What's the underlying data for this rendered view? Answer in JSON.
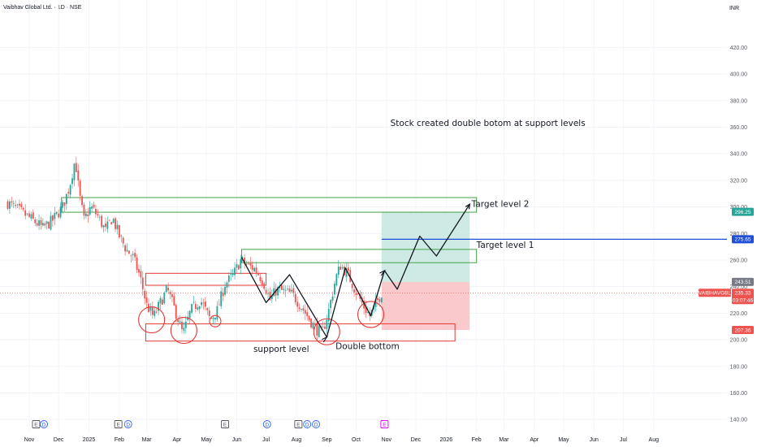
{
  "header": {
    "title": "Vaibhav Global Ltd. · 1D · NSE",
    "currency": "INR"
  },
  "colors": {
    "up": "#26a69a",
    "down": "#ef5350",
    "support_box": "#e53935",
    "resistance_box": "#43a047",
    "target_line": "#1e4fd6",
    "profit_zone": "#cdebe4",
    "loss_zone": "#f9c9cc"
  },
  "chart_data": {
    "type": "candlestick",
    "ylim": [
      130,
      430
    ],
    "y_ticks": [
      140,
      160,
      180,
      200,
      220,
      240,
      260,
      280,
      300,
      320,
      340,
      360,
      380,
      400,
      420
    ],
    "y_tick_labels": [
      "140.00",
      "160.00",
      "180.00",
      "200.00",
      "220.00",
      "240.00",
      "260.00",
      "280.00",
      "300.00",
      "320.00",
      "340.00",
      "360.00",
      "380.00",
      "400.00",
      "420.00"
    ],
    "x_labels": [
      "Nov",
      "Dec",
      "2025",
      "Feb",
      "Mar",
      "Apr",
      "May",
      "Jun",
      "Jul",
      "Aug",
      "Sep",
      "Oct",
      "Nov",
      "Dec",
      "2026",
      "Feb",
      "Mar",
      "Apr",
      "May",
      "Jun",
      "Jul",
      "Aug"
    ],
    "x_dates": [
      "2024-11-01",
      "2024-12-01",
      "2025-01-01",
      "2025-02-01",
      "2025-03-01",
      "2025-04-01",
      "2025-05-01",
      "2025-06-01",
      "2025-07-01",
      "2025-08-01",
      "2025-09-01",
      "2025-10-01",
      "2025-11-01",
      "2025-12-01",
      "2026-01-01",
      "2026-02-01",
      "2026-03-01",
      "2026-04-01",
      "2026-05-01",
      "2026-06-01",
      "2026-07-01",
      "2026-08-01"
    ],
    "price_series": [
      [
        "2024-10-10",
        303
      ],
      [
        "2024-10-20",
        298
      ],
      [
        "2024-11-01",
        292
      ],
      [
        "2024-11-15",
        284
      ],
      [
        "2024-11-25",
        290
      ],
      [
        "2024-12-05",
        300
      ],
      [
        "2024-12-12",
        315
      ],
      [
        "2024-12-18",
        336
      ],
      [
        "2024-12-22",
        310
      ],
      [
        "2024-12-27",
        290
      ],
      [
        "2025-01-03",
        300
      ],
      [
        "2025-01-10",
        293
      ],
      [
        "2025-01-18",
        282
      ],
      [
        "2025-01-25",
        292
      ],
      [
        "2025-02-01",
        278
      ],
      [
        "2025-02-08",
        268
      ],
      [
        "2025-02-15",
        262
      ],
      [
        "2025-02-22",
        248
      ],
      [
        "2025-03-01",
        226
      ],
      [
        "2025-03-08",
        217
      ],
      [
        "2025-03-15",
        228
      ],
      [
        "2025-03-22",
        238
      ],
      [
        "2025-04-01",
        218
      ],
      [
        "2025-04-07",
        204
      ],
      [
        "2025-04-15",
        222
      ],
      [
        "2025-04-25",
        230
      ],
      [
        "2025-05-05",
        215
      ],
      [
        "2025-05-12",
        222
      ],
      [
        "2025-05-20",
        242
      ],
      [
        "2025-05-28",
        248
      ],
      [
        "2025-06-05",
        260
      ],
      [
        "2025-06-12",
        256
      ],
      [
        "2025-06-20",
        253
      ],
      [
        "2025-06-28",
        244
      ],
      [
        "2025-07-05",
        230
      ],
      [
        "2025-07-12",
        238
      ],
      [
        "2025-07-20",
        236
      ],
      [
        "2025-07-28",
        234
      ],
      [
        "2025-08-05",
        226
      ],
      [
        "2025-08-12",
        218
      ],
      [
        "2025-08-20",
        209
      ],
      [
        "2025-08-27",
        204
      ],
      [
        "2025-09-03",
        222
      ],
      [
        "2025-09-10",
        246
      ],
      [
        "2025-09-15",
        256
      ],
      [
        "2025-09-22",
        250
      ],
      [
        "2025-10-01",
        236
      ],
      [
        "2025-10-08",
        226
      ],
      [
        "2025-10-15",
        218
      ],
      [
        "2025-10-22",
        228
      ],
      [
        "2025-10-27",
        235.33
      ]
    ],
    "ohlc_last": {
      "close": 235.33
    },
    "price_labels": [
      {
        "value": 296.25,
        "text": "296.25",
        "color": "#26a69a"
      },
      {
        "value": 275.65,
        "text": "275.65",
        "color": "#1e4fd6"
      },
      {
        "value": 243.51,
        "text": "243.51",
        "color": "#787b86"
      },
      {
        "value": 235.33,
        "text": "235.33",
        "color": "#ef5350",
        "symbol": "VAIBHAVGBL",
        "countdown": "03:07:46"
      },
      {
        "value": 207.36,
        "text": "207.36",
        "color": "#ef5350"
      }
    ],
    "horizontal_lines": [
      {
        "name": "target-level-1-line",
        "value": 275.65
      }
    ],
    "position": {
      "entry": 243.51,
      "target": 296.25,
      "stop": 207.36,
      "start": "2025-10-27",
      "end": "2026-01-25"
    },
    "zones": [
      {
        "name": "resistance-zone-top",
        "kind": "resistance",
        "start": "2024-12-04",
        "end": "2026-02-01",
        "top": 307,
        "bottom": 296
      },
      {
        "name": "resistance-zone-mid",
        "kind": "resistance",
        "start": "2025-06-06",
        "end": "2026-02-01",
        "top": 268,
        "bottom": 258
      },
      {
        "name": "support-zone-upper",
        "kind": "support",
        "start": "2025-02-28",
        "end": "2025-07-01",
        "top": 250,
        "bottom": 241
      },
      {
        "name": "support-zone-lower",
        "kind": "support",
        "start": "2025-02-28",
        "end": "2026-01-10",
        "top": 212,
        "bottom": 199
      }
    ],
    "circles": [
      {
        "date": "2025-03-06",
        "value": 215,
        "size": "large"
      },
      {
        "date": "2025-04-08",
        "value": 207,
        "size": "large"
      },
      {
        "date": "2025-05-10",
        "value": 214,
        "size": "small"
      },
      {
        "date": "2025-09-01",
        "value": 206,
        "size": "large"
      },
      {
        "date": "2025-10-16",
        "value": 219,
        "size": "large"
      }
    ],
    "pattern_path": [
      [
        "2025-06-06",
        262
      ],
      [
        "2025-07-01",
        228
      ],
      [
        "2025-07-25",
        249
      ],
      [
        "2025-09-01",
        202
      ],
      [
        "2025-09-20",
        254
      ],
      [
        "2025-10-16",
        218
      ],
      [
        "2025-10-30",
        252
      ],
      [
        "2025-11-12",
        238
      ],
      [
        "2025-12-05",
        278
      ],
      [
        "2025-12-22",
        263
      ],
      [
        "2026-01-25",
        302
      ]
    ],
    "event_markers": [
      {
        "date": "2024-11-08",
        "label": "E",
        "style": "earnings"
      },
      {
        "date": "2024-11-16",
        "label": "D",
        "style": "dividend"
      },
      {
        "date": "2025-01-31",
        "label": "E",
        "style": "earnings"
      },
      {
        "date": "2025-02-10",
        "label": "D",
        "style": "dividend"
      },
      {
        "date": "2025-05-20",
        "label": "E",
        "style": "earnings"
      },
      {
        "date": "2025-07-02",
        "label": "D",
        "style": "dividend"
      },
      {
        "date": "2025-08-03",
        "label": "E",
        "style": "earnings"
      },
      {
        "date": "2025-08-12",
        "label": "D",
        "style": "dividend"
      },
      {
        "date": "2025-08-21",
        "label": "D",
        "style": "dividend"
      },
      {
        "date": "2025-10-30",
        "label": "E",
        "style": "upcoming"
      }
    ],
    "annotations": [
      {
        "name": "double-bottom-title",
        "text": "Stock created double botom at support levels",
        "date": "2025-11-05",
        "value": 361,
        "size": 10.5
      },
      {
        "name": "target-level-2-label",
        "text": "Target level 2",
        "date": "2026-01-27",
        "value": 300,
        "size": 10.5
      },
      {
        "name": "target-level-1-label",
        "text": "Target level 1",
        "date": "2026-02-01",
        "value": 269,
        "size": 10.5
      },
      {
        "name": "support-level-label",
        "text": "support level",
        "date": "2025-06-18",
        "value": 191,
        "size": 10.5
      },
      {
        "name": "double-bottom-label",
        "text": "Double bottom",
        "date": "2025-09-10",
        "value": 193,
        "size": 10.5
      }
    ]
  }
}
